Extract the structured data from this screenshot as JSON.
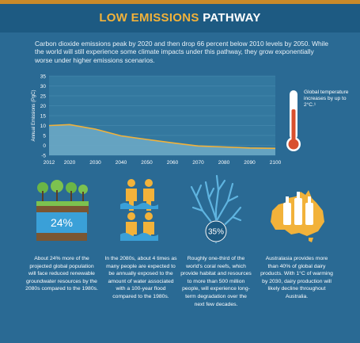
{
  "title": {
    "accent": "LOW EMISSIONS",
    "rest": "PATHWAY"
  },
  "intro": "Carbon dioxide emissions peak by 2020 and then drop 66 percent below 2010 levels by 2050. While the world will still experience some climate impacts under this pathway, they grow exponentially worse under higher emissions scenarios.",
  "thermometer_label": "Global temperature increases by up to 2°C.¹",
  "colors": {
    "panel": "#2a6a94",
    "accent": "#f2b23a",
    "area": "#6aa7c4",
    "line": "#f2b23a",
    "thermometer": "#d9502e"
  },
  "chart_data": {
    "type": "area",
    "x": [
      2012,
      2020,
      2030,
      2040,
      2050,
      2060,
      2070,
      2080,
      2090,
      2100
    ],
    "series": [
      {
        "values": [
          10,
          10.5,
          8.2,
          4.8,
          3.0,
          1.3,
          -0.3,
          -0.8,
          -1.3,
          -1.5
        ]
      }
    ],
    "ylabel": "Annual Emissions (PgC)",
    "yticks": [
      35,
      30,
      25,
      20,
      15,
      10,
      5,
      0,
      -5
    ],
    "xticks": [
      "2012",
      "2020",
      "2030",
      "2040",
      "2050",
      "2060",
      "2070",
      "2080",
      "2090",
      "2100"
    ],
    "ylim": [
      -5,
      35
    ],
    "xlim": [
      2012,
      2100
    ],
    "grid": true
  },
  "stats": {
    "percent": "24%",
    "coral_percent": "35%"
  },
  "captions": {
    "groundwater": "About 24% more of the projected global population will face reduced renewable groundwater resources by the 2080s compared to the 1980s.",
    "flood": "In the 2080s, about 4 times as many people are expected to be annually exposed to the amount of water associated with a 100-year flood compared to the 1980s.",
    "coral": "Roughly one-third of the world's coral reefs, which provide habitat and resources to more than 500 million people, will experience long-term degradation over the next few decades.",
    "dairy": "Australasia provides more than 40% of global dairy products. With 1°C of warming by 2030, dairy production will likely decline throughout Australia."
  }
}
